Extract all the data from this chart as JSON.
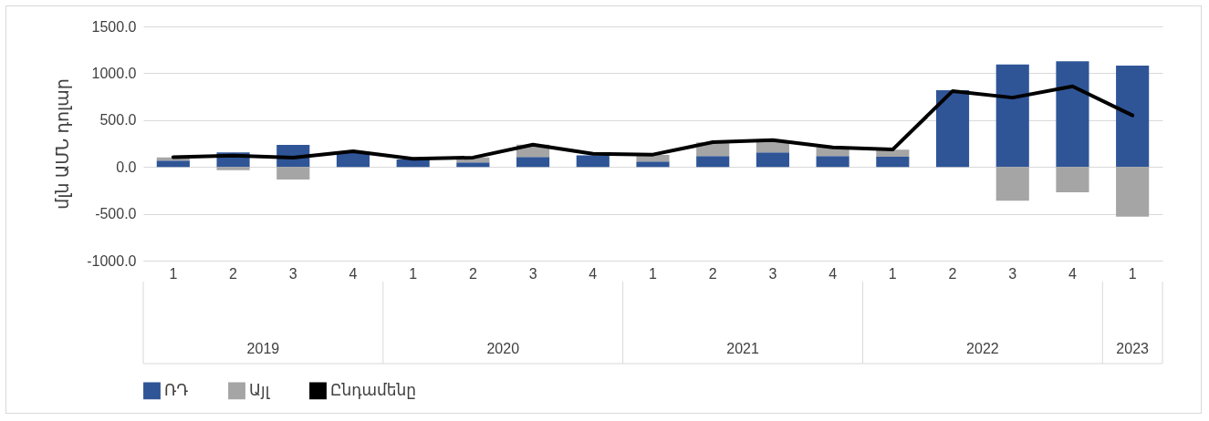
{
  "chart_data": {
    "type": "bar",
    "ylabel": "մլն ԱՄՆ դոլար",
    "stacked": true,
    "grid": "y",
    "legend": "bottom",
    "categories": [
      "1",
      "2",
      "3",
      "4",
      "1",
      "2",
      "3",
      "4",
      "1",
      "2",
      "3",
      "4",
      "1",
      "2",
      "3",
      "4",
      "1"
    ],
    "annotations": [
      "2019",
      "2020",
      "2021",
      "2022",
      "2023"
    ],
    "ylim": [
      -1000,
      1500
    ],
    "yticks": [
      {
        "value": -1000,
        "label": "-1000.0"
      },
      {
        "value": -500,
        "label": "-500.0"
      },
      {
        "value": 0,
        "label": "0.0"
      },
      {
        "value": 500,
        "label": "500.0"
      },
      {
        "value": 1000,
        "label": "1000.0"
      },
      {
        "value": 1500,
        "label": "1500.0"
      }
    ],
    "series": [
      {
        "name": "ՌԴ",
        "color": "#2f5597",
        "values": [
          67,
          155,
          235,
          160,
          80,
          47,
          107,
          124,
          58,
          116,
          155,
          116,
          109,
          818,
          1093,
          1128,
          1081
        ]
      },
      {
        "name": "Այլ",
        "color": "#a5a5a5",
        "values": [
          35,
          -35,
          -135,
          null,
          null,
          55,
          130,
          null,
          70,
          145,
          130,
          95,
          75,
          null,
          -360,
          -270,
          -530
        ]
      },
      {
        "name": "Ընդամենը",
        "type": "line",
        "color": "#000000",
        "values": [
          104,
          120,
          100,
          168,
          87,
          100,
          238,
          141,
          132,
          264,
          287,
          209,
          186,
          810,
          740,
          860,
          550
        ]
      }
    ]
  }
}
